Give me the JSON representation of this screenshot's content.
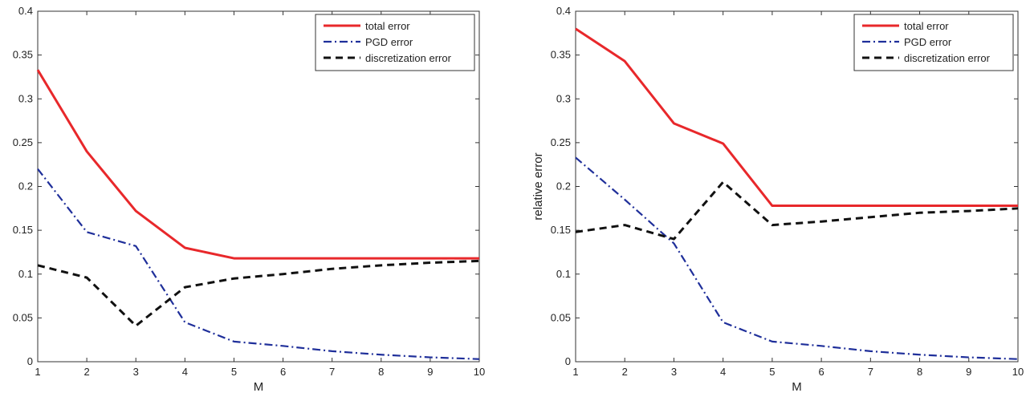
{
  "chart_data": [
    {
      "type": "line",
      "title": "",
      "xlabel": "M",
      "ylabel": "",
      "xlim": [
        1,
        10
      ],
      "ylim": [
        0,
        0.4
      ],
      "x": [
        1,
        2,
        3,
        4,
        5,
        6,
        7,
        8,
        9,
        10
      ],
      "xticks": [
        "1",
        "2",
        "3",
        "4",
        "5",
        "6",
        "7",
        "8",
        "9",
        "10"
      ],
      "yticks": [
        "0",
        "0.05",
        "0.1",
        "0.15",
        "0.2",
        "0.25",
        "0.3",
        "0.35",
        "0.4"
      ],
      "grid": false,
      "legend_position": "top-right",
      "series": [
        {
          "name": "total error",
          "color": "#e8282b",
          "style": "solid",
          "values": [
            0.333,
            0.24,
            0.172,
            0.13,
            0.118,
            0.118,
            0.118,
            0.118,
            0.118,
            0.118
          ]
        },
        {
          "name": "PGD error",
          "color": "#1f2f9a",
          "style": "dashdot",
          "values": [
            0.22,
            0.148,
            0.132,
            0.045,
            0.023,
            0.018,
            0.012,
            0.008,
            0.005,
            0.003
          ]
        },
        {
          "name": "discretization error",
          "color": "#111111",
          "style": "dashed",
          "values": [
            0.11,
            0.096,
            0.041,
            0.085,
            0.095,
            0.1,
            0.106,
            0.11,
            0.113,
            0.115
          ]
        }
      ]
    },
    {
      "type": "line",
      "title": "",
      "xlabel": "M",
      "ylabel": "relative error",
      "xlim": [
        1,
        10
      ],
      "ylim": [
        0,
        0.4
      ],
      "x": [
        1,
        2,
        3,
        4,
        5,
        6,
        7,
        8,
        9,
        10
      ],
      "xticks": [
        "1",
        "2",
        "3",
        "4",
        "5",
        "6",
        "7",
        "8",
        "9",
        "10"
      ],
      "yticks": [
        "0",
        "0.05",
        "0.1",
        "0.15",
        "0.2",
        "0.25",
        "0.3",
        "0.35",
        "0.4"
      ],
      "grid": false,
      "legend_position": "top-right",
      "series": [
        {
          "name": "total error",
          "color": "#e8282b",
          "style": "solid",
          "values": [
            0.38,
            0.343,
            0.272,
            0.249,
            0.178,
            0.178,
            0.178,
            0.178,
            0.178,
            0.178
          ]
        },
        {
          "name": "PGD error",
          "color": "#1f2f9a",
          "style": "dashdot",
          "values": [
            0.233,
            0.185,
            0.135,
            0.045,
            0.023,
            0.018,
            0.012,
            0.008,
            0.005,
            0.003
          ]
        },
        {
          "name": "discretization error",
          "color": "#111111",
          "style": "dashed",
          "values": [
            0.148,
            0.156,
            0.14,
            0.205,
            0.156,
            0.16,
            0.165,
            0.17,
            0.172,
            0.175
          ]
        }
      ]
    }
  ]
}
